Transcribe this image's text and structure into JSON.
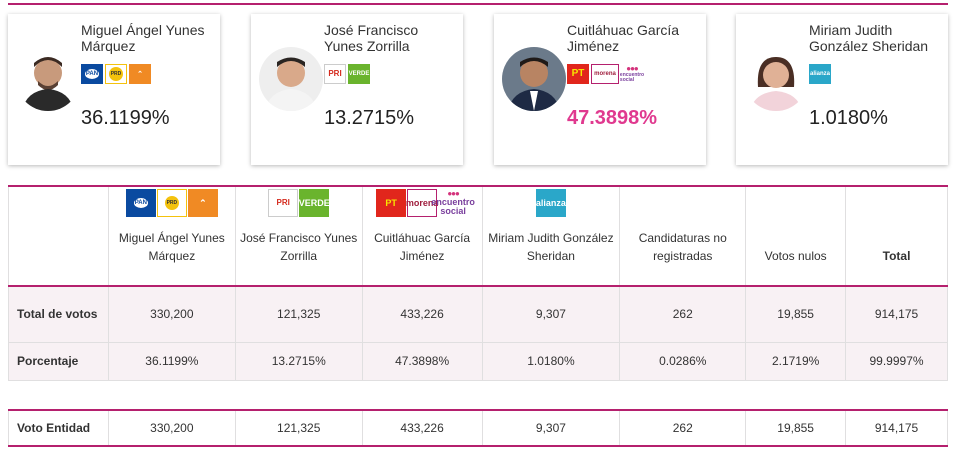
{
  "accent_color": "#b5206e",
  "winner_color": "#e0398f",
  "candidates": [
    {
      "name": "Miguel Ángel Yunes Márquez",
      "pct": "36.1199%",
      "logos": [
        "PAN",
        "PRD",
        "MC"
      ]
    },
    {
      "name": "José Francisco Yunes Zorrilla",
      "pct": "13.2715%",
      "logos": [
        "PRI",
        "VERDE"
      ]
    },
    {
      "name": "Cuitláhuac García Jiménez",
      "pct": "47.3898%",
      "logos": [
        "PT",
        "morena",
        "encuentro social"
      ]
    },
    {
      "name": "Miriam Judith González Sheridan",
      "pct": "1.0180%",
      "logos": [
        "alianza"
      ]
    }
  ],
  "table": {
    "headers": [
      "Miguel Ángel Yunes Márquez",
      "José Francisco Yunes Zorrilla",
      "Cuitláhuac García Jiménez",
      "Miriam Judith González Sheridan",
      "Candidaturas no registradas",
      "Votos nulos",
      "Total"
    ],
    "rows": [
      {
        "label": "Total de votos",
        "values": [
          "330,200",
          "121,325",
          "433,226",
          "9,307",
          "262",
          "19,855",
          "914,175"
        ]
      },
      {
        "label": "Porcentaje",
        "values": [
          "36.1199%",
          "13.2715%",
          "47.3898%",
          "1.0180%",
          "0.0286%",
          "2.1719%",
          "99.9997%"
        ]
      },
      {
        "label": "Voto Entidad",
        "values": [
          "330,200",
          "121,325",
          "433,226",
          "9,307",
          "262",
          "19,855",
          "914,175"
        ]
      }
    ]
  }
}
